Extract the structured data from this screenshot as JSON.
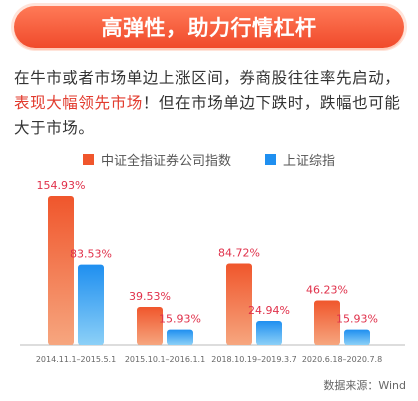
{
  "banner": {
    "title": "高弹性，助力行情杠杆"
  },
  "intro": {
    "part1": "在牛市或者市场单边上涨区间，券商股往往率先启动，",
    "highlight": "表现大幅领先市场",
    "part2": "！但在市场单边下跌时，跌幅也可能大于市场。"
  },
  "legend": {
    "series1": "中证全指证券公司指数",
    "series2": "上证综指"
  },
  "source": "数据来源：Wind",
  "chart_data": {
    "type": "bar",
    "categories": [
      "2014.11.1–2015.5.1",
      "2015.10.1–2016.1.1",
      "2018.10.19–2019.3.7",
      "2020.6.18–2020.7.8"
    ],
    "series": [
      {
        "name": "中证全指证券公司指数",
        "values": [
          154.93,
          39.53,
          84.72,
          46.23
        ],
        "labels": [
          "154.93%",
          "39.53%",
          "84.72%",
          "46.23%"
        ]
      },
      {
        "name": "上证综指",
        "values": [
          83.53,
          15.93,
          24.94,
          15.93
        ],
        "labels": [
          "83.53%",
          "15.93%",
          "24.94%",
          "15.93%"
        ]
      }
    ],
    "ylim": [
      0,
      160
    ],
    "colors": {
      "series1_top": "#f0562c",
      "series1_bottom": "#f6a67f",
      "series2_top": "#1f8ff0",
      "series2_bottom": "#8cd0f7",
      "label": "#e0304a"
    }
  }
}
